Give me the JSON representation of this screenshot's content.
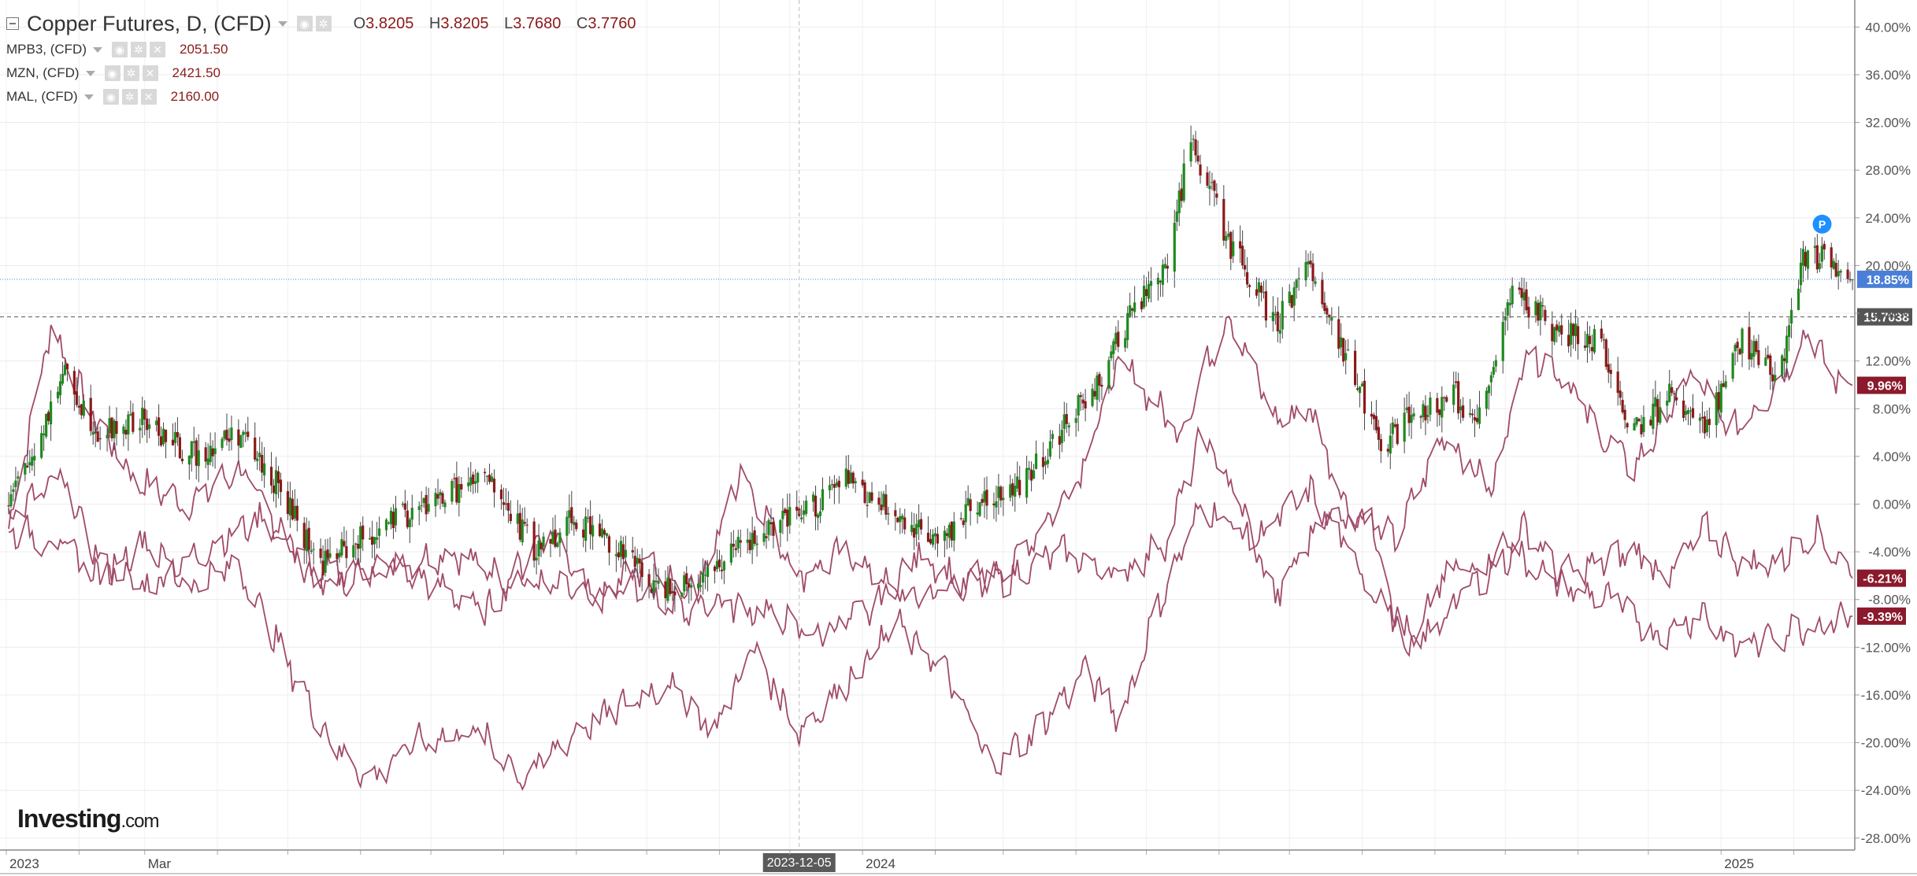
{
  "legend": {
    "main": {
      "name": "Copper Futures, D, (CFD)",
      "o_label": "O",
      "o": "3.8205",
      "h_label": "H",
      "h": "3.8205",
      "l_label": "L",
      "l": "3.7680",
      "c_label": "C",
      "c": "3.7760"
    },
    "series": [
      {
        "name": "MPB3, (CFD)",
        "value": "2051.50"
      },
      {
        "name": "MZN, (CFD)",
        "value": "2421.50"
      },
      {
        "name": "MAL, (CFD)",
        "value": "2160.00"
      }
    ]
  },
  "watermark": {
    "brand": "Investing",
    "suffix": ".com"
  },
  "colors": {
    "up": "#1e8a1e",
    "down": "#8b1a1a",
    "compare": "#a04a6a",
    "last_line": "#4a7fd8",
    "badge_blue": "#4a7fd8",
    "badge_gray": "#555555",
    "badge_red": "#8b1a2c"
  },
  "chart_data": {
    "type": "line",
    "scale": "percent",
    "x_range": [
      "2023-01-01",
      "2025-02-28"
    ],
    "ylim": [
      -29,
      42
    ],
    "yticks": [
      40,
      36,
      32,
      28,
      24,
      20,
      16,
      12,
      8,
      4,
      0,
      -4,
      -8,
      -12,
      -16,
      -20,
      -24,
      -28
    ],
    "ytick_labels": [
      "40.00%",
      "36.00%",
      "32.00%",
      "28.00%",
      "24.00%",
      "20.00%",
      "16.00%",
      "12.00%",
      "8.00%",
      "4.00%",
      "0.00%",
      "-4.00%",
      "-8.00%",
      "-12.00%",
      "-16.00%",
      "-20.00%",
      "-24.00%",
      "-28.00%"
    ],
    "x_labels": [
      {
        "date": "2023-01-01",
        "label": "2023"
      },
      {
        "date": "2023-03-01",
        "label": "Mar"
      },
      {
        "date": "2024-01-01",
        "label": "2024"
      },
      {
        "date": "2025-01-01",
        "label": "2025"
      }
    ],
    "crosshair": {
      "date": "2023-12-05",
      "label": "2023-12-05"
    },
    "price_lines": [
      {
        "value": 18.85,
        "label": "18.85%",
        "style": "dotted",
        "color": "#4a7fd8"
      },
      {
        "value": 15.7,
        "label": "15.7038",
        "style": "dashed",
        "color": "#555555"
      }
    ],
    "end_badges": [
      {
        "value": 9.96,
        "label": "9.96%",
        "color": "#8b1a2c"
      },
      {
        "value": -6.21,
        "label": "-6.21%",
        "color": "#8b1a2c"
      },
      {
        "value": -9.39,
        "label": "-9.39%",
        "color": "#8b1a2c"
      }
    ],
    "marker": {
      "date": "2025-02-05",
      "value": 24,
      "label": "P"
    },
    "candles": {
      "name": "Copper Futures, D, (CFD)",
      "keypoints": [
        [
          "2023-01-01",
          0
        ],
        [
          "2023-01-10",
          3
        ],
        [
          "2023-01-25",
          11
        ],
        [
          "2023-02-10",
          6
        ],
        [
          "2023-03-01",
          7
        ],
        [
          "2023-03-20",
          4
        ],
        [
          "2023-04-10",
          6
        ],
        [
          "2023-04-25",
          2
        ],
        [
          "2023-05-15",
          -5
        ],
        [
          "2023-06-01",
          -3
        ],
        [
          "2023-06-20",
          -1
        ],
        [
          "2023-07-10",
          1
        ],
        [
          "2023-07-25",
          2
        ],
        [
          "2023-08-15",
          -4
        ],
        [
          "2023-08-30",
          -1
        ],
        [
          "2023-09-15",
          -3
        ],
        [
          "2023-10-05",
          -7
        ],
        [
          "2023-10-25",
          -6
        ],
        [
          "2023-11-15",
          -3
        ],
        [
          "2023-12-05",
          -1
        ],
        [
          "2023-12-25",
          2
        ],
        [
          "2024-01-15",
          -1
        ],
        [
          "2024-02-05",
          -3
        ],
        [
          "2024-02-15",
          0
        ],
        [
          "2024-03-05",
          1
        ],
        [
          "2024-03-25",
          6
        ],
        [
          "2024-04-10",
          10
        ],
        [
          "2024-04-25",
          16
        ],
        [
          "2024-05-10",
          20
        ],
        [
          "2024-05-20",
          31
        ],
        [
          "2024-06-05",
          22
        ],
        [
          "2024-06-25",
          15
        ],
        [
          "2024-07-10",
          20
        ],
        [
          "2024-07-30",
          10
        ],
        [
          "2024-08-10",
          5
        ],
        [
          "2024-08-25",
          8
        ],
        [
          "2024-09-10",
          9
        ],
        [
          "2024-09-20",
          7
        ],
        [
          "2024-10-05",
          18
        ],
        [
          "2024-10-25",
          14
        ],
        [
          "2024-11-10",
          14
        ],
        [
          "2024-11-25",
          6
        ],
        [
          "2024-12-10",
          9
        ],
        [
          "2024-12-25",
          6
        ],
        [
          "2025-01-10",
          14
        ],
        [
          "2025-01-25",
          10
        ],
        [
          "2025-02-05",
          21
        ],
        [
          "2025-02-20",
          20
        ],
        [
          "2025-02-26",
          18.85
        ]
      ]
    },
    "series": [
      {
        "name": "MPB3, (CFD)",
        "points": [
          [
            "2023-01-01",
            -3
          ],
          [
            "2023-01-20",
            15
          ],
          [
            "2023-02-05",
            8
          ],
          [
            "2023-02-25",
            2
          ],
          [
            "2023-03-20",
            0
          ],
          [
            "2023-04-10",
            3
          ],
          [
            "2023-04-30",
            -3
          ],
          [
            "2023-05-15",
            -7
          ],
          [
            "2023-06-15",
            -5
          ],
          [
            "2023-07-10",
            -4
          ],
          [
            "2023-07-30",
            -6
          ],
          [
            "2023-08-20",
            -7
          ],
          [
            "2023-09-10",
            -8
          ],
          [
            "2023-09-25",
            -7
          ],
          [
            "2023-10-20",
            -9
          ],
          [
            "2023-11-10",
            3
          ],
          [
            "2023-12-05",
            -6
          ],
          [
            "2023-12-25",
            -4
          ],
          [
            "2024-01-20",
            -8
          ],
          [
            "2024-02-10",
            -7
          ],
          [
            "2024-03-05",
            -5
          ],
          [
            "2024-04-01",
            2
          ],
          [
            "2024-04-20",
            12
          ],
          [
            "2024-05-15",
            6
          ],
          [
            "2024-06-05",
            16
          ],
          [
            "2024-06-25",
            7
          ],
          [
            "2024-07-10",
            8
          ],
          [
            "2024-07-25",
            0
          ],
          [
            "2024-08-15",
            -3
          ],
          [
            "2024-09-05",
            6
          ],
          [
            "2024-09-25",
            1
          ],
          [
            "2024-10-10",
            13
          ],
          [
            "2024-10-25",
            11
          ],
          [
            "2024-11-10",
            6
          ],
          [
            "2024-11-25",
            3
          ],
          [
            "2024-12-20",
            11
          ],
          [
            "2025-01-05",
            6
          ],
          [
            "2025-01-25",
            10
          ],
          [
            "2025-02-08",
            15
          ],
          [
            "2025-02-15",
            11
          ],
          [
            "2025-02-26",
            9.96
          ]
        ]
      },
      {
        "name": "MZN, (CFD)",
        "points": [
          [
            "2023-01-01",
            -1
          ],
          [
            "2023-01-25",
            2
          ],
          [
            "2023-02-10",
            -5
          ],
          [
            "2023-03-01",
            -7
          ],
          [
            "2023-03-25",
            -4
          ],
          [
            "2023-04-20",
            -1
          ],
          [
            "2023-05-15",
            -6
          ],
          [
            "2023-06-10",
            -5
          ],
          [
            "2023-07-05",
            -7
          ],
          [
            "2023-07-25",
            -9
          ],
          [
            "2023-08-20",
            -2
          ],
          [
            "2023-09-10",
            -8
          ],
          [
            "2023-10-01",
            -5
          ],
          [
            "2023-10-25",
            -8
          ],
          [
            "2023-11-20",
            -9
          ],
          [
            "2023-12-10",
            -11
          ],
          [
            "2024-01-05",
            -9
          ],
          [
            "2024-01-25",
            -4
          ],
          [
            "2024-02-15",
            -7
          ],
          [
            "2024-03-05",
            -6
          ],
          [
            "2024-03-25",
            -4
          ],
          [
            "2024-04-20",
            -6
          ],
          [
            "2024-05-10",
            -3
          ],
          [
            "2024-05-25",
            6
          ],
          [
            "2024-06-10",
            0
          ],
          [
            "2024-06-25",
            -8
          ],
          [
            "2024-07-15",
            -1
          ],
          [
            "2024-08-05",
            -1
          ],
          [
            "2024-08-20",
            -13
          ],
          [
            "2024-09-05",
            -6
          ],
          [
            "2024-09-20",
            -5
          ],
          [
            "2024-10-10",
            -2
          ],
          [
            "2024-10-25",
            -6
          ],
          [
            "2024-11-10",
            -5
          ],
          [
            "2024-11-25",
            -4
          ],
          [
            "2024-12-10",
            -6
          ],
          [
            "2024-12-25",
            -2
          ],
          [
            "2025-01-10",
            -5
          ],
          [
            "2025-01-25",
            -5
          ],
          [
            "2025-02-10",
            -2
          ],
          [
            "2025-02-26",
            -6.21
          ]
        ]
      },
      {
        "name": "MAL, (CFD)",
        "points": [
          [
            "2023-01-01",
            -2
          ],
          [
            "2023-01-20",
            -3
          ],
          [
            "2023-02-10",
            -6
          ],
          [
            "2023-03-01",
            -3
          ],
          [
            "2023-03-20",
            -7
          ],
          [
            "2023-04-10",
            -5
          ],
          [
            "2023-04-30",
            -13
          ],
          [
            "2023-05-20",
            -20
          ],
          [
            "2023-06-05",
            -23
          ],
          [
            "2023-06-25",
            -20
          ],
          [
            "2023-07-20",
            -19
          ],
          [
            "2023-08-10",
            -23
          ],
          [
            "2023-09-01",
            -19
          ],
          [
            "2023-09-20",
            -17
          ],
          [
            "2023-10-10",
            -15
          ],
          [
            "2023-10-30",
            -19
          ],
          [
            "2023-11-15",
            -12
          ],
          [
            "2023-12-05",
            -19
          ],
          [
            "2023-12-25",
            -15
          ],
          [
            "2024-01-15",
            -10
          ],
          [
            "2024-02-05",
            -14
          ],
          [
            "2024-02-25",
            -22
          ],
          [
            "2024-03-15",
            -19
          ],
          [
            "2024-04-05",
            -14
          ],
          [
            "2024-04-20",
            -18
          ],
          [
            "2024-05-05",
            -9
          ],
          [
            "2024-05-25",
            0
          ],
          [
            "2024-06-15",
            -3
          ],
          [
            "2024-07-10",
            1
          ],
          [
            "2024-08-05",
            -7
          ],
          [
            "2024-08-25",
            -12
          ],
          [
            "2024-09-15",
            -7
          ],
          [
            "2024-10-05",
            -4
          ],
          [
            "2024-10-25",
            -7
          ],
          [
            "2024-11-15",
            -8
          ],
          [
            "2024-12-05",
            -11
          ],
          [
            "2024-12-25",
            -9
          ],
          [
            "2025-01-05",
            -12
          ],
          [
            "2025-01-25",
            -11
          ],
          [
            "2025-02-10",
            -10
          ],
          [
            "2025-02-26",
            -9.39
          ]
        ]
      }
    ]
  }
}
